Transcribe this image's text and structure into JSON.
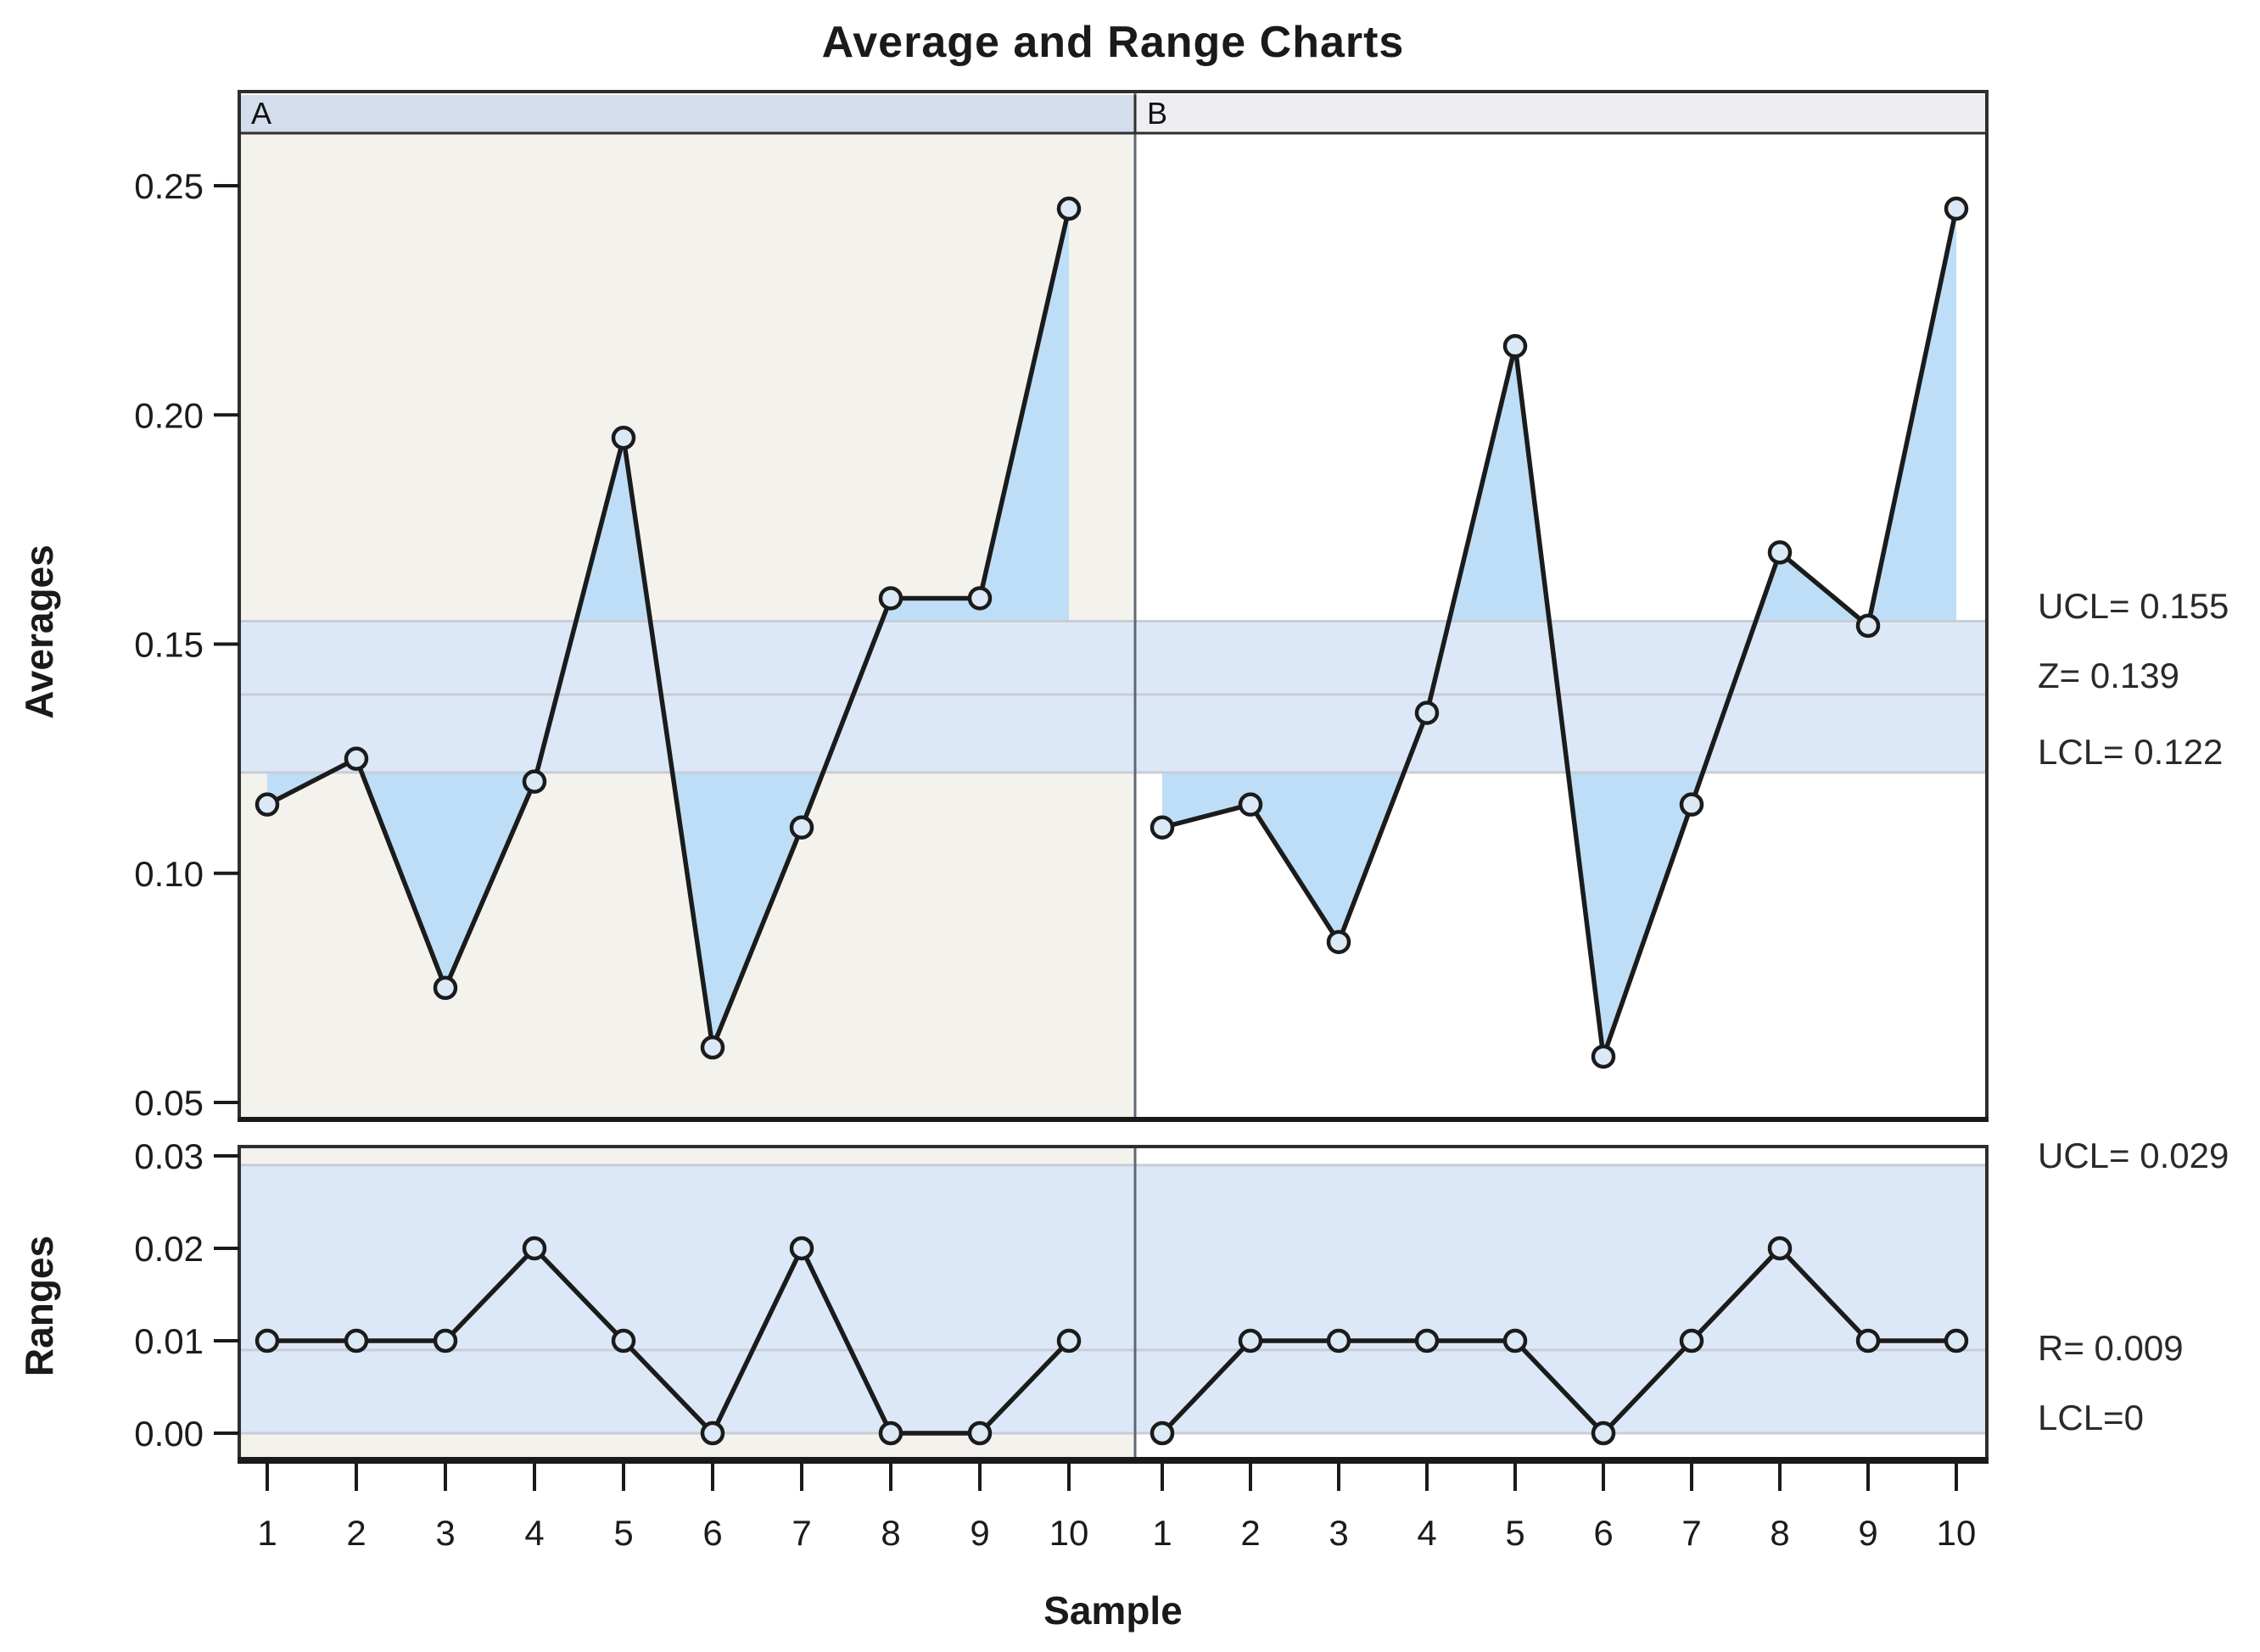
{
  "title": "Average and Range Charts",
  "x_axis": {
    "label": "Sample",
    "tick_labels": [
      "1",
      "2",
      "3",
      "4",
      "5",
      "6",
      "7",
      "8",
      "9",
      "10"
    ]
  },
  "panels": [
    {
      "label": "A"
    },
    {
      "label": "B"
    }
  ],
  "chart_data": [
    {
      "id": "averages",
      "type": "line",
      "title": "Averages control chart (X-bar), paneled by group A and B",
      "ylabel": "Averages",
      "ytick_values": [
        0.25,
        0.2,
        0.15,
        0.1,
        0.05
      ],
      "ytick_labels": [
        "0.25",
        "0.20",
        "0.15",
        "0.10",
        "0.05"
      ],
      "ylim": [
        0.046,
        0.261
      ],
      "control_limits": {
        "ucl": 0.155,
        "center": 0.139,
        "lcl": 0.122
      },
      "annotations": [
        "UCL= 0.155",
        "Z= 0.139",
        "LCL= 0.122"
      ],
      "categories": [
        1,
        2,
        3,
        4,
        5,
        6,
        7,
        8,
        9,
        10
      ],
      "series": [
        {
          "name": "A",
          "values": [
            0.115,
            0.125,
            0.075,
            0.12,
            0.195,
            0.062,
            0.11,
            0.16,
            0.16,
            0.245
          ]
        },
        {
          "name": "B",
          "values": [
            0.11,
            0.115,
            0.085,
            0.135,
            0.215,
            0.06,
            0.115,
            0.17,
            0.154,
            0.245
          ]
        }
      ]
    },
    {
      "id": "ranges",
      "type": "line",
      "title": "Ranges control chart (R), paneled by group A and B",
      "ylabel": "Ranges",
      "ytick_values": [
        0.03,
        0.02,
        0.01,
        0.0
      ],
      "ytick_labels": [
        "0.03",
        "0.02",
        "0.01",
        "0.00"
      ],
      "ylim": [
        -0.005,
        0.031
      ],
      "control_limits": {
        "ucl": 0.029,
        "center": 0.009,
        "lcl": 0
      },
      "annotations": [
        "UCL= 0.029",
        "R= 0.009",
        "LCL=0"
      ],
      "categories": [
        1,
        2,
        3,
        4,
        5,
        6,
        7,
        8,
        9,
        10
      ],
      "series": [
        {
          "name": "A",
          "values": [
            0.01,
            0.01,
            0.01,
            0.02,
            0.01,
            0.0,
            0.02,
            0.0,
            0.0,
            0.01
          ]
        },
        {
          "name": "B",
          "values": [
            0.0,
            0.01,
            0.01,
            0.01,
            0.01,
            0.0,
            0.01,
            0.02,
            0.01,
            0.01
          ]
        }
      ]
    }
  ],
  "colors": {
    "panel_a_bg": "#f4f2ed",
    "panel_b_bg": "#ffffff",
    "header_a_bg": "#d4ddec",
    "header_b_bg": "#ededf2",
    "band_fill": "#dce8f7",
    "deviation_fill": "#bddef6",
    "gridline": "#c8cdd5",
    "series_line": "#1b1b1b",
    "marker_fill": "#dbe9f6",
    "divider": "#5f6873",
    "frame": "#2e2e2e",
    "text": "#1c1c1c"
  }
}
